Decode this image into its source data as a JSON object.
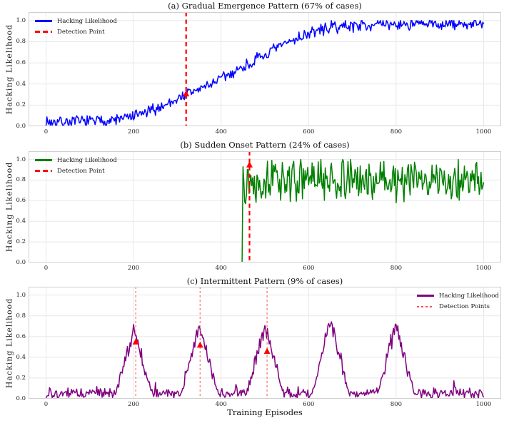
{
  "figure": {
    "xlabel": "Training Episodes",
    "background": "#ffffff",
    "grid_color": "#e8e8e8",
    "spine_color": "#cfcfcf"
  },
  "chart_data": [
    {
      "id": "a",
      "type": "line",
      "title": "(a) Gradual Emergence Pattern (67% of cases)",
      "ylabel": "Hacking Likelihood",
      "xlim": [
        -40,
        1040
      ],
      "ylim": [
        0,
        1.08
      ],
      "xticks": [
        0,
        200,
        400,
        600,
        800,
        1000
      ],
      "yticks": [
        0.0,
        0.2,
        0.4,
        0.6,
        0.8,
        1.0
      ],
      "grid": true,
      "legend_position": "upper-left",
      "series": [
        {
          "name": "Hacking Likelihood",
          "color": "#0000ff",
          "style": "solid",
          "trend_points": [
            [
              0,
              0.04
            ],
            [
              100,
              0.045
            ],
            [
              150,
              0.055
            ],
            [
              200,
              0.09
            ],
            [
              250,
              0.16
            ],
            [
              300,
              0.26
            ],
            [
              320,
              0.3
            ],
            [
              350,
              0.35
            ],
            [
              400,
              0.45
            ],
            [
              450,
              0.56
            ],
            [
              500,
              0.67
            ],
            [
              550,
              0.79
            ],
            [
              600,
              0.88
            ],
            [
              650,
              0.935
            ],
            [
              700,
              0.955
            ],
            [
              750,
              0.965
            ],
            [
              1000,
              0.965
            ]
          ],
          "noise": 0.05
        }
      ],
      "detection": {
        "label": "Detection Point",
        "color": "#ff0000",
        "style": "dashed",
        "x": [
          320
        ],
        "marker_y": [
          0.31
        ]
      }
    },
    {
      "id": "b",
      "type": "line",
      "title": "(b) Sudden Onset Pattern (24% of cases)",
      "ylabel": "Hacking Likelihood",
      "xlim": [
        -40,
        1040
      ],
      "ylim": [
        0,
        1.08
      ],
      "xticks": [
        0,
        200,
        400,
        600,
        800,
        1000
      ],
      "yticks": [
        0.0,
        0.2,
        0.4,
        0.6,
        0.8,
        1.0
      ],
      "grid": true,
      "legend_position": "upper-left",
      "series": [
        {
          "name": "Hacking Likelihood",
          "color": "#008000",
          "style": "solid",
          "onset_x": 450,
          "pre_onset_value": 0.0,
          "post_onset_mean": 0.8,
          "post_onset_range": [
            0.5,
            1.0
          ],
          "onset_peak": 0.93,
          "noise": 0.12
        }
      ],
      "detection": {
        "label": "Detection Point",
        "color": "#ff0000",
        "style": "dashed",
        "x": [
          465
        ],
        "marker_y": [
          0.95
        ]
      }
    },
    {
      "id": "c",
      "type": "line",
      "title": "(c) Intermittent Pattern (9% of cases)",
      "ylabel": "Hacking Likelihood",
      "xlim": [
        -40,
        1040
      ],
      "ylim": [
        0,
        1.08
      ],
      "xticks": [
        0,
        200,
        400,
        600,
        800,
        1000
      ],
      "yticks": [
        0.0,
        0.2,
        0.4,
        0.6,
        0.8,
        1.0
      ],
      "grid": true,
      "legend_position": "upper-right",
      "series": [
        {
          "name": "Hacking Likelihood",
          "color": "#800080",
          "style": "solid",
          "baseline": 0.05,
          "noise": 0.05,
          "peaks": {
            "centers": [
              200,
              350,
              500,
              650,
              800
            ],
            "heights": [
              0.67,
              0.7,
              0.7,
              0.76,
              0.73
            ],
            "half_width": 45
          }
        }
      ],
      "detection": {
        "label": "Detection Points",
        "color": "#ff4d4d",
        "style": "fine-dashed",
        "x": [
          205,
          352,
          505
        ],
        "marker_y": [
          0.55,
          0.52,
          0.46
        ]
      }
    }
  ]
}
